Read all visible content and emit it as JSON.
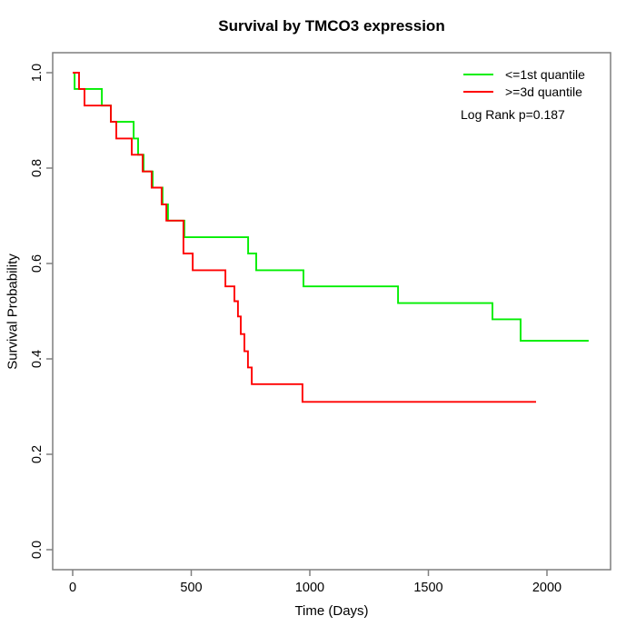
{
  "chart_data": {
    "type": "line",
    "subtype": "kaplan-meier-step",
    "title": "Survival by TMCO3 expression",
    "xlabel": "Time (Days)",
    "ylabel": "Survival Probability",
    "x_ticks": [
      "0",
      "500",
      "1000",
      "1500",
      "2000"
    ],
    "x_tick_values": [
      0,
      500,
      1000,
      1500,
      2000
    ],
    "y_ticks": [
      "0.0",
      "0.2",
      "0.4",
      "0.6",
      "0.8",
      "1.0"
    ],
    "y_tick_values": [
      0,
      0.2,
      0.4,
      0.6,
      0.8,
      1.0
    ],
    "xlim": [
      0,
      2268
    ],
    "ylim": [
      0,
      1
    ],
    "grid": false,
    "legend_position": "topright",
    "annotation": "Log Rank p=0.187",
    "axis_color": "#7f7f7f",
    "text_color": "#000000",
    "series": [
      {
        "name": "<=1st quantile",
        "color": "#00ee00",
        "end_time": 2176,
        "points": [
          [
            0,
            1.0
          ],
          [
            8,
            0.966
          ],
          [
            123,
            0.931
          ],
          [
            161,
            0.897
          ],
          [
            257,
            0.862
          ],
          [
            276,
            0.828
          ],
          [
            299,
            0.793
          ],
          [
            337,
            0.759
          ],
          [
            379,
            0.724
          ],
          [
            402,
            0.69
          ],
          [
            471,
            0.655
          ],
          [
            740,
            0.621
          ],
          [
            774,
            0.586
          ],
          [
            973,
            0.552
          ],
          [
            1372,
            0.517
          ],
          [
            1770,
            0.483
          ],
          [
            1889,
            0.438
          ]
        ]
      },
      {
        "name": ">=3d quantile",
        "color": "#ff0000",
        "end_time": 1954,
        "points": [
          [
            0,
            1.0
          ],
          [
            27,
            0.966
          ],
          [
            50,
            0.931
          ],
          [
            161,
            0.897
          ],
          [
            184,
            0.862
          ],
          [
            249,
            0.828
          ],
          [
            295,
            0.793
          ],
          [
            333,
            0.759
          ],
          [
            375,
            0.724
          ],
          [
            395,
            0.69
          ],
          [
            467,
            0.621
          ],
          [
            506,
            0.586
          ],
          [
            644,
            0.552
          ],
          [
            682,
            0.521
          ],
          [
            697,
            0.489
          ],
          [
            709,
            0.452
          ],
          [
            724,
            0.416
          ],
          [
            739,
            0.382
          ],
          [
            755,
            0.347
          ],
          [
            969,
            0.31
          ]
        ]
      }
    ]
  }
}
